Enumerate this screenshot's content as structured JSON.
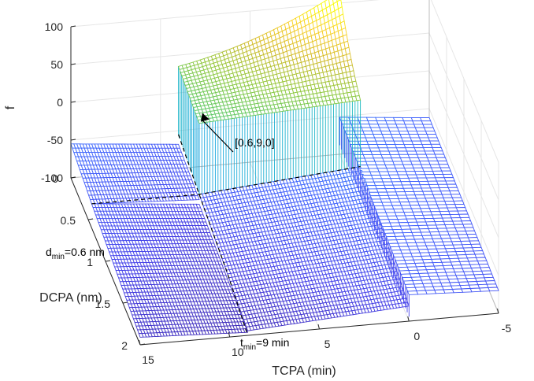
{
  "chart_data": {
    "type": "surface-mesh",
    "title": "",
    "xlabel": "TCPA (min)",
    "ylabel": "DCPA (nm)",
    "zlabel": "f",
    "xlim": [
      -5,
      15
    ],
    "ylim": [
      0,
      2
    ],
    "zlim": [
      -100,
      100
    ],
    "x_ticks": [
      "15",
      "10",
      "5",
      "0",
      "-5"
    ],
    "y_ticks": [
      "0",
      "0.5",
      "1",
      "1.5",
      "2"
    ],
    "z_ticks": [
      "100",
      "50",
      "0",
      "-50",
      "-100"
    ],
    "grid": true,
    "colormap": "parula",
    "regions": [
      {
        "x": [
          9,
          0
        ],
        "y": [
          0,
          0.6
        ],
        "z_corners": [
          35,
          97,
          26,
          38
        ]
      },
      {
        "x": [
          15,
          9
        ],
        "y": [
          0,
          0.6
        ],
        "z_corners": [
          -55,
          -68,
          -68,
          -75
        ]
      },
      {
        "x": [
          15,
          9
        ],
        "y": [
          0.6,
          2
        ],
        "z_corners": [
          -68,
          -81,
          -90,
          -96
        ]
      },
      {
        "x": [
          9,
          0
        ],
        "y": [
          0.6,
          2
        ],
        "z_corners": [
          -68,
          -50,
          -94,
          -80
        ]
      },
      {
        "x": [
          0,
          -5
        ],
        "y": [
          0,
          2
        ],
        "z_corners": [
          -51,
          -62,
          -65,
          -70
        ]
      }
    ],
    "annotations": {
      "point_label": "[0.6,9,0]",
      "dmin_label": {
        "main": "d",
        "sub": "min",
        "rest": "=0.6 nm"
      },
      "tmin_label": {
        "main": "t",
        "sub": "min",
        "rest": "=9 min"
      }
    }
  },
  "colors": {
    "box": "#262626",
    "grid": "#e6e6e6",
    "cmap": [
      "#3e26a8",
      "#4743e9",
      "#4164fd",
      "#2e87f7",
      "#1ca9df",
      "#1ec1b2",
      "#40c983",
      "#8fc941",
      "#d4bb2b",
      "#f9d028",
      "#f9fb0e"
    ]
  }
}
